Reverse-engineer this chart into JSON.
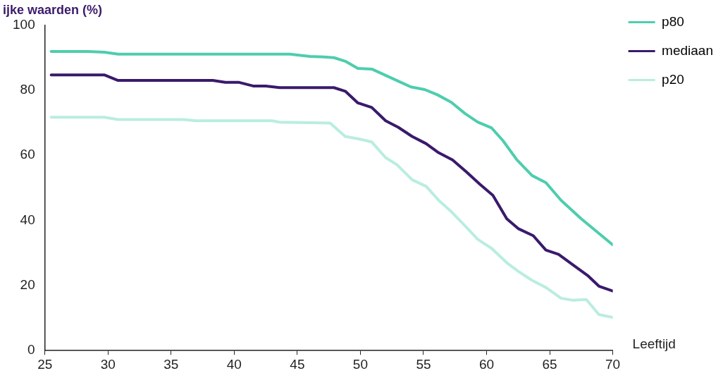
{
  "chart_data": {
    "type": "line",
    "title": "ijke waarden (%)",
    "xlabel": "Leeftijd",
    "xlim": [
      25,
      70
    ],
    "xticks": [
      25,
      30,
      35,
      40,
      45,
      50,
      55,
      60,
      65,
      70
    ],
    "ylim": [
      0,
      100
    ],
    "yticks": [
      0,
      20,
      40,
      60,
      80,
      100
    ],
    "grid": false,
    "legend": "top right",
    "marker": "none",
    "line_style": "solid",
    "series": [
      {
        "name": "p80",
        "color": "#4ecdae",
        "x": [
          25.5,
          28.4,
          29.7,
          30.8,
          44.4,
          46.0,
          47.1,
          47.9,
          48.8,
          49.8,
          50.9,
          53.1,
          54.0,
          55.1,
          56.1,
          57.2,
          58.3,
          59.3,
          60.4,
          61.3,
          62.4,
          63.6,
          64.7,
          65.9,
          67.5,
          70.0
        ],
        "values": [
          91.9,
          91.9,
          91.7,
          91.1,
          91.1,
          90.4,
          90.2,
          90.0,
          88.9,
          86.7,
          86.5,
          82.6,
          81.0,
          80.2,
          78.6,
          76.3,
          72.8,
          70.2,
          68.4,
          64.5,
          58.6,
          53.8,
          51.6,
          46.2,
          40.5,
          32.5
        ]
      },
      {
        "name": "mediaan",
        "color": "#3a1a6b",
        "x": [
          25.5,
          29.7,
          30.8,
          38.3,
          39.3,
          40.4,
          41.5,
          42.5,
          43.6,
          47.9,
          48.8,
          49.8,
          50.9,
          52.0,
          53.0,
          54.1,
          55.2,
          56.2,
          57.3,
          58.4,
          59.5,
          60.5,
          61.6,
          62.5,
          63.7,
          64.7,
          65.7,
          67.0,
          68.0,
          68.9,
          70.0
        ],
        "values": [
          84.7,
          84.7,
          83.0,
          83.0,
          82.4,
          82.4,
          81.3,
          81.3,
          80.8,
          80.8,
          79.7,
          76.1,
          74.7,
          70.6,
          68.6,
          65.8,
          63.6,
          60.8,
          58.6,
          54.9,
          51.0,
          47.7,
          40.5,
          37.5,
          35.3,
          30.9,
          29.6,
          25.9,
          23.1,
          19.8,
          18.3
        ]
      },
      {
        "name": "p20",
        "color": "#b9ede0",
        "x": [
          25.5,
          29.7,
          30.8,
          36.0,
          37.0,
          43.0,
          43.6,
          47.6,
          48.8,
          49.8,
          50.9,
          52.0,
          52.9,
          54.1,
          55.2,
          56.2,
          57.2,
          58.3,
          59.3,
          60.4,
          61.6,
          62.5,
          63.6,
          64.7,
          65.9,
          66.8,
          67.9,
          68.9,
          70.0
        ],
        "values": [
          71.7,
          71.7,
          71.0,
          71.0,
          70.6,
          70.6,
          70.2,
          69.9,
          65.8,
          65.1,
          64.1,
          59.3,
          57.1,
          52.5,
          50.5,
          46.2,
          42.7,
          38.3,
          34.2,
          31.4,
          27.0,
          24.4,
          21.6,
          19.4,
          16.1,
          15.5,
          15.7,
          11.1,
          10.2
        ]
      }
    ]
  }
}
